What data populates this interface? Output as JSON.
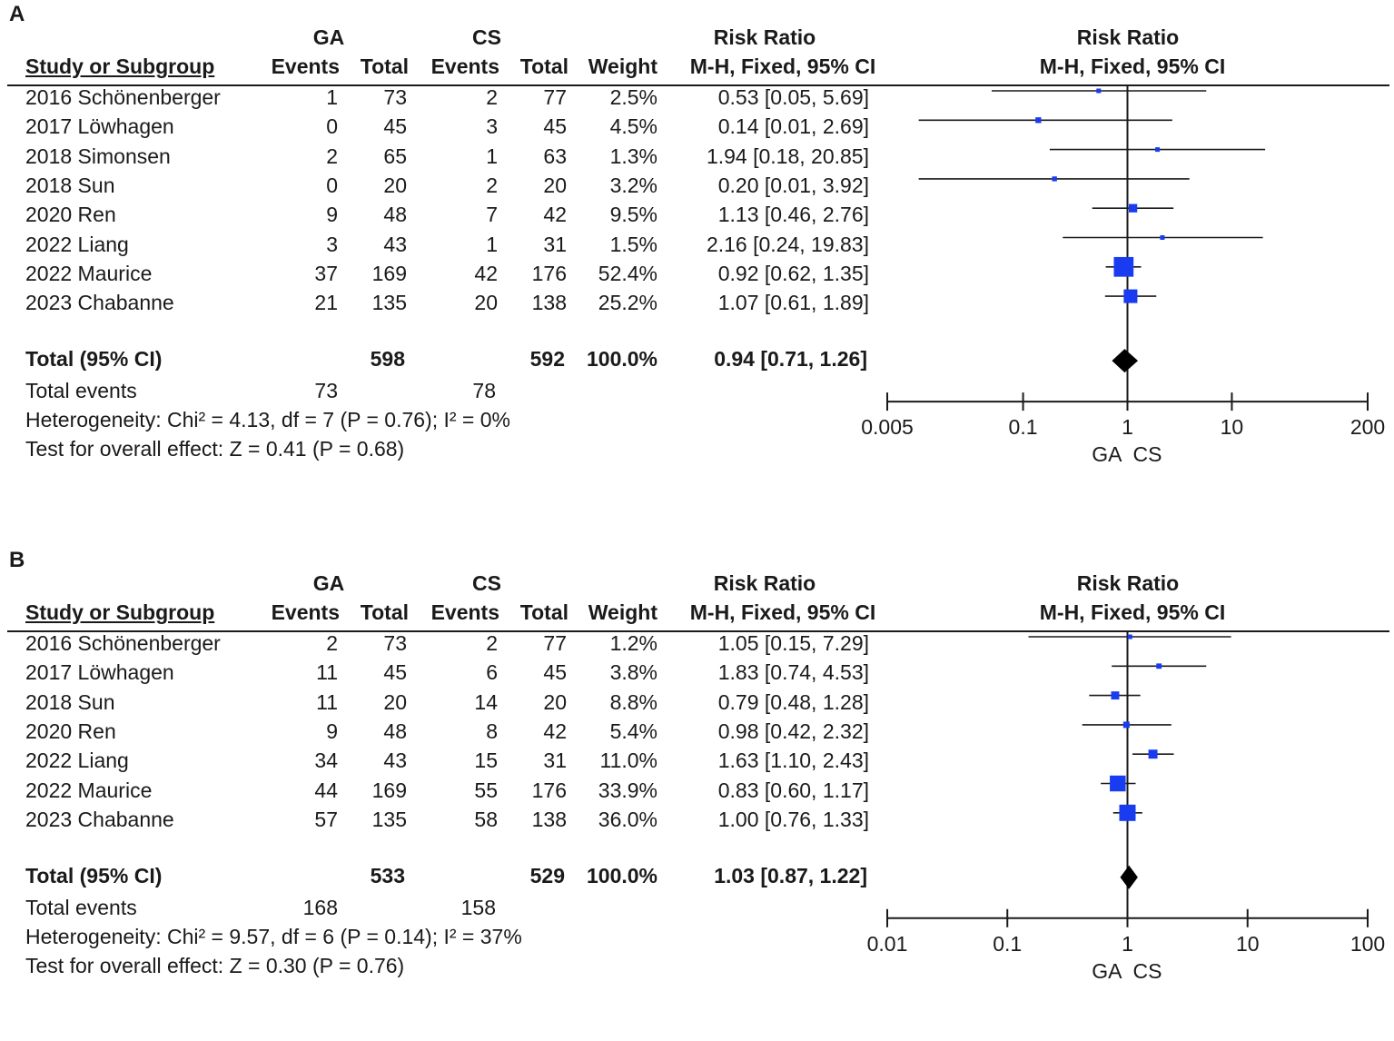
{
  "chart_data": [
    {
      "type": "forest",
      "panel_label": "A",
      "headers": {
        "study": "Study or Subgroup",
        "group1": "GA",
        "group2": "CS",
        "events": "Events",
        "total": "Total",
        "weight": "Weight",
        "rr": "Risk Ratio",
        "method": "M-H, Fixed, 95% CI",
        "plot_title": "Risk Ratio",
        "plot_method": "M-H, Fixed, 95% CI"
      },
      "studies": [
        {
          "name": "2016 Schönenberger",
          "ga_events": "1",
          "ga_total": "73",
          "cs_events": "2",
          "cs_total": "77",
          "weight": "2.5%",
          "ci_text": "0.53 [0.05, 5.69]",
          "rr": 0.53,
          "lo": 0.05,
          "hi": 5.69,
          "w": 2.5
        },
        {
          "name": "2017 Löwhagen",
          "ga_events": "0",
          "ga_total": "45",
          "cs_events": "3",
          "cs_total": "45",
          "weight": "4.5%",
          "ci_text": "0.14 [0.01, 2.69]",
          "rr": 0.14,
          "lo": 0.01,
          "hi": 2.69,
          "w": 4.5
        },
        {
          "name": "2018 Simonsen",
          "ga_events": "2",
          "ga_total": "65",
          "cs_events": "1",
          "cs_total": "63",
          "weight": "1.3%",
          "ci_text": "1.94 [0.18, 20.85]",
          "rr": 1.94,
          "lo": 0.18,
          "hi": 20.85,
          "w": 1.3
        },
        {
          "name": "2018 Sun",
          "ga_events": "0",
          "ga_total": "20",
          "cs_events": "2",
          "cs_total": "20",
          "weight": "3.2%",
          "ci_text": "0.20 [0.01, 3.92]",
          "rr": 0.2,
          "lo": 0.01,
          "hi": 3.92,
          "w": 3.2
        },
        {
          "name": "2020 Ren",
          "ga_events": "9",
          "ga_total": "48",
          "cs_events": "7",
          "cs_total": "42",
          "weight": "9.5%",
          "ci_text": "1.13 [0.46, 2.76]",
          "rr": 1.13,
          "lo": 0.46,
          "hi": 2.76,
          "w": 9.5
        },
        {
          "name": "2022 Liang",
          "ga_events": "3",
          "ga_total": "43",
          "cs_events": "1",
          "cs_total": "31",
          "weight": "1.5%",
          "ci_text": "2.16 [0.24, 19.83]",
          "rr": 2.16,
          "lo": 0.24,
          "hi": 19.83,
          "w": 1.5
        },
        {
          "name": "2022 Maurice",
          "ga_events": "37",
          "ga_total": "169",
          "cs_events": "42",
          "cs_total": "176",
          "weight": "52.4%",
          "ci_text": "0.92 [0.62, 1.35]",
          "rr": 0.92,
          "lo": 0.62,
          "hi": 1.35,
          "w": 52.4
        },
        {
          "name": "2023 Chabanne",
          "ga_events": "21",
          "ga_total": "135",
          "cs_events": "20",
          "cs_total": "138",
          "weight": "25.2%",
          "ci_text": "1.07 [0.61, 1.89]",
          "rr": 1.07,
          "lo": 0.61,
          "hi": 1.89,
          "w": 25.2
        }
      ],
      "total": {
        "label": "Total (95% CI)",
        "ga_total": "598",
        "cs_total": "592",
        "weight": "100.0%",
        "ci_text": "0.94 [0.71, 1.26]",
        "rr": 0.94,
        "lo": 0.71,
        "hi": 1.26
      },
      "total_events": {
        "label": "Total events",
        "ga": "73",
        "cs": "78"
      },
      "heterogeneity": "Heterogeneity: Chi² = 4.13, df = 7 (P = 0.76); I² = 0%",
      "overall_effect": "Test for overall effect: Z = 0.41 (P = 0.68)",
      "axis": {
        "scale": "log",
        "min": 0.005,
        "max": 200,
        "ticks": [
          0.005,
          0.1,
          1,
          10,
          200
        ],
        "tick_labels": [
          "0.005",
          "0.1",
          "1",
          "10",
          "200"
        ],
        "left_label": "GA",
        "right_label": "CS"
      }
    },
    {
      "type": "forest",
      "panel_label": "B",
      "headers": {
        "study": "Study or Subgroup",
        "group1": "GA",
        "group2": "CS",
        "events": "Events",
        "total": "Total",
        "weight": "Weight",
        "rr": "Risk Ratio",
        "method": "M-H, Fixed, 95% CI",
        "plot_title": "Risk Ratio",
        "plot_method": "M-H, Fixed, 95% CI"
      },
      "studies": [
        {
          "name": "2016 Schönenberger",
          "ga_events": "2",
          "ga_total": "73",
          "cs_events": "2",
          "cs_total": "77",
          "weight": "1.2%",
          "ci_text": "1.05 [0.15, 7.29]",
          "rr": 1.05,
          "lo": 0.15,
          "hi": 7.29,
          "w": 1.2
        },
        {
          "name": "2017 Löwhagen",
          "ga_events": "11",
          "ga_total": "45",
          "cs_events": "6",
          "cs_total": "45",
          "weight": "3.8%",
          "ci_text": "1.83 [0.74, 4.53]",
          "rr": 1.83,
          "lo": 0.74,
          "hi": 4.53,
          "w": 3.8
        },
        {
          "name": "2018 Sun",
          "ga_events": "11",
          "ga_total": "20",
          "cs_events": "14",
          "cs_total": "20",
          "weight": "8.8%",
          "ci_text": "0.79 [0.48, 1.28]",
          "rr": 0.79,
          "lo": 0.48,
          "hi": 1.28,
          "w": 8.8
        },
        {
          "name": "2020 Ren",
          "ga_events": "9",
          "ga_total": "48",
          "cs_events": "8",
          "cs_total": "42",
          "weight": "5.4%",
          "ci_text": "0.98 [0.42, 2.32]",
          "rr": 0.98,
          "lo": 0.42,
          "hi": 2.32,
          "w": 5.4
        },
        {
          "name": "2022 Liang",
          "ga_events": "34",
          "ga_total": "43",
          "cs_events": "15",
          "cs_total": "31",
          "weight": "11.0%",
          "ci_text": "1.63 [1.10, 2.43]",
          "rr": 1.63,
          "lo": 1.1,
          "hi": 2.43,
          "w": 11.0
        },
        {
          "name": "2022 Maurice",
          "ga_events": "44",
          "ga_total": "169",
          "cs_events": "55",
          "cs_total": "176",
          "weight": "33.9%",
          "ci_text": "0.83 [0.60, 1.17]",
          "rr": 0.83,
          "lo": 0.6,
          "hi": 1.17,
          "w": 33.9
        },
        {
          "name": "2023 Chabanne",
          "ga_events": "57",
          "ga_total": "135",
          "cs_events": "58",
          "cs_total": "138",
          "weight": "36.0%",
          "ci_text": "1.00 [0.76, 1.33]",
          "rr": 1.0,
          "lo": 0.76,
          "hi": 1.33,
          "w": 36.0
        }
      ],
      "total": {
        "label": "Total (95% CI)",
        "ga_total": "533",
        "cs_total": "529",
        "weight": "100.0%",
        "ci_text": "1.03 [0.87, 1.22]",
        "rr": 1.03,
        "lo": 0.87,
        "hi": 1.22
      },
      "total_events": {
        "label": "Total events",
        "ga": "168",
        "cs": "158"
      },
      "heterogeneity": "Heterogeneity: Chi² = 9.57, df = 6 (P = 0.14); I² = 37%",
      "overall_effect": "Test for overall effect: Z = 0.30 (P = 0.76)",
      "axis": {
        "scale": "log",
        "min": 0.01,
        "max": 100,
        "ticks": [
          0.01,
          0.1,
          1,
          10,
          100
        ],
        "tick_labels": [
          "0.01",
          "0.1",
          "1",
          "10",
          "100"
        ],
        "left_label": "GA",
        "right_label": "CS"
      }
    }
  ],
  "colors": {
    "marker": "#1a3cf0",
    "text": "#1a1a1a",
    "diamond": "#000000"
  }
}
